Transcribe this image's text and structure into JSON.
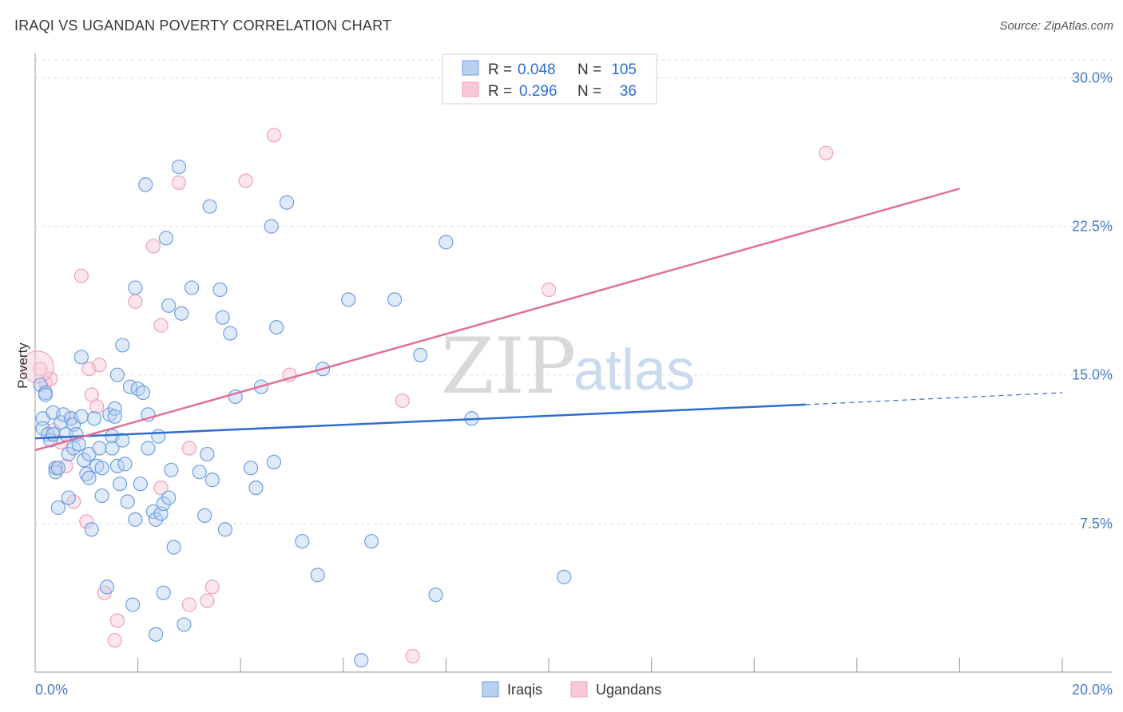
{
  "header": {
    "title": "IRAQI VS UGANDAN POVERTY CORRELATION CHART",
    "source": "Source: ZipAtlas.com"
  },
  "legend": {
    "rows": [
      {
        "r_label": "R =",
        "r_value": "0.048",
        "n_label": "N =",
        "n_value": "105"
      },
      {
        "r_label": "R =",
        "r_value": "0.296",
        "n_label": "N =",
        "n_value": "36"
      }
    ]
  },
  "watermark": {
    "zip": "ZIP",
    "atlas": "atlas"
  },
  "chart_data": {
    "type": "scatter",
    "title": "IRAQI VS UGANDAN POVERTY CORRELATION CHART",
    "xlabel": "",
    "ylabel": "Poverty",
    "xlim": [
      0,
      20
    ],
    "ylim": [
      0,
      30.9
    ],
    "x_tick_labels": [
      "0.0%",
      "20.0%"
    ],
    "y_ticks": [
      7.5,
      15.0,
      22.5,
      30.0
    ],
    "y_tick_labels": [
      "7.5%",
      "15.0%",
      "22.5%",
      "30.0%"
    ],
    "colors": {
      "iraqis": "#6f9fe0",
      "ugandans": "#f0a0ba",
      "iraqis_line": "#2d6ed0",
      "ugandans_line": "#e0709a"
    },
    "series": [
      {
        "name": "Iraqis",
        "trend": {
          "x0": 0,
          "y0": 11.8,
          "x1": 15.0,
          "y1": 13.5,
          "dash_to_x": 20,
          "dash_to_y": 14.1
        },
        "points": [
          [
            0.1,
            14.5
          ],
          [
            0.15,
            12.8
          ],
          [
            0.15,
            12.3
          ],
          [
            0.2,
            14.1
          ],
          [
            0.2,
            14.0
          ],
          [
            0.25,
            12.0
          ],
          [
            0.3,
            11.7
          ],
          [
            0.35,
            13.1
          ],
          [
            0.35,
            12.0
          ],
          [
            0.4,
            10.3
          ],
          [
            0.4,
            10.1
          ],
          [
            0.45,
            10.3
          ],
          [
            0.45,
            8.3
          ],
          [
            0.5,
            12.6
          ],
          [
            0.55,
            13.0
          ],
          [
            0.6,
            12.0
          ],
          [
            0.65,
            11.0
          ],
          [
            0.65,
            8.8
          ],
          [
            0.7,
            12.8
          ],
          [
            0.75,
            12.5
          ],
          [
            0.75,
            11.3
          ],
          [
            0.8,
            12.0
          ],
          [
            0.85,
            11.5
          ],
          [
            0.9,
            15.9
          ],
          [
            0.9,
            12.9
          ],
          [
            0.95,
            10.7
          ],
          [
            1.0,
            10.0
          ],
          [
            1.05,
            9.8
          ],
          [
            1.05,
            11.0
          ],
          [
            1.1,
            7.2
          ],
          [
            1.15,
            12.8
          ],
          [
            1.2,
            10.4
          ],
          [
            1.25,
            11.3
          ],
          [
            1.3,
            10.3
          ],
          [
            1.3,
            8.9
          ],
          [
            1.4,
            4.3
          ],
          [
            1.45,
            13.0
          ],
          [
            1.5,
            11.9
          ],
          [
            1.5,
            11.3
          ],
          [
            1.55,
            13.3
          ],
          [
            1.55,
            12.9
          ],
          [
            1.6,
            15.0
          ],
          [
            1.6,
            10.4
          ],
          [
            1.65,
            9.5
          ],
          [
            1.7,
            16.5
          ],
          [
            1.7,
            11.7
          ],
          [
            1.75,
            10.5
          ],
          [
            1.8,
            8.6
          ],
          [
            1.85,
            14.4
          ],
          [
            1.9,
            3.4
          ],
          [
            1.95,
            19.4
          ],
          [
            1.95,
            7.7
          ],
          [
            2.0,
            14.3
          ],
          [
            2.05,
            9.5
          ],
          [
            2.1,
            14.1
          ],
          [
            2.15,
            24.6
          ],
          [
            2.2,
            13.0
          ],
          [
            2.2,
            11.3
          ],
          [
            2.3,
            8.1
          ],
          [
            2.35,
            7.7
          ],
          [
            2.35,
            1.9
          ],
          [
            2.4,
            11.9
          ],
          [
            2.45,
            8.0
          ],
          [
            2.5,
            8.5
          ],
          [
            2.5,
            4.0
          ],
          [
            2.55,
            21.9
          ],
          [
            2.6,
            8.8
          ],
          [
            2.6,
            18.5
          ],
          [
            2.65,
            10.2
          ],
          [
            2.7,
            6.3
          ],
          [
            2.8,
            25.5
          ],
          [
            2.85,
            18.1
          ],
          [
            2.9,
            2.4
          ],
          [
            3.05,
            19.4
          ],
          [
            3.2,
            10.1
          ],
          [
            3.3,
            7.9
          ],
          [
            3.35,
            11.0
          ],
          [
            3.4,
            23.5
          ],
          [
            3.45,
            9.7
          ],
          [
            3.6,
            19.3
          ],
          [
            3.65,
            17.9
          ],
          [
            3.7,
            7.2
          ],
          [
            3.8,
            17.1
          ],
          [
            3.9,
            13.9
          ],
          [
            4.2,
            10.3
          ],
          [
            4.3,
            9.3
          ],
          [
            4.4,
            14.4
          ],
          [
            4.6,
            22.5
          ],
          [
            4.65,
            10.6
          ],
          [
            4.7,
            17.4
          ],
          [
            4.9,
            23.7
          ],
          [
            5.2,
            6.6
          ],
          [
            5.5,
            4.9
          ],
          [
            5.6,
            15.3
          ],
          [
            6.1,
            18.8
          ],
          [
            6.35,
            0.6
          ],
          [
            6.55,
            6.6
          ],
          [
            7.0,
            18.8
          ],
          [
            7.5,
            16.0
          ],
          [
            7.8,
            3.9
          ],
          [
            8.0,
            21.7
          ],
          [
            8.5,
            12.8
          ],
          [
            10.3,
            4.8
          ]
        ]
      },
      {
        "name": "Ugandans",
        "trend": {
          "x0": 0,
          "y0": 11.2,
          "x1": 18.0,
          "y1": 24.4
        },
        "points": [
          [
            0.1,
            15.3
          ],
          [
            0.2,
            14.6
          ],
          [
            0.3,
            14.8
          ],
          [
            0.35,
            12.2
          ],
          [
            0.4,
            10.3
          ],
          [
            0.5,
            11.6
          ],
          [
            0.6,
            10.4
          ],
          [
            0.7,
            12.8
          ],
          [
            0.75,
            8.6
          ],
          [
            0.9,
            20.0
          ],
          [
            1.0,
            7.6
          ],
          [
            1.05,
            15.3
          ],
          [
            1.1,
            14.0
          ],
          [
            1.2,
            13.4
          ],
          [
            1.25,
            15.5
          ],
          [
            1.35,
            4.0
          ],
          [
            1.55,
            1.6
          ],
          [
            1.6,
            2.6
          ],
          [
            1.95,
            18.7
          ],
          [
            2.3,
            21.5
          ],
          [
            2.45,
            9.3
          ],
          [
            2.45,
            17.5
          ],
          [
            2.8,
            24.7
          ],
          [
            3.0,
            11.3
          ],
          [
            3.0,
            3.4
          ],
          [
            3.35,
            3.6
          ],
          [
            3.45,
            4.3
          ],
          [
            4.1,
            24.8
          ],
          [
            4.65,
            27.1
          ],
          [
            4.95,
            15.0
          ],
          [
            7.15,
            13.7
          ],
          [
            7.35,
            0.8
          ],
          [
            10.0,
            19.3
          ],
          [
            15.4,
            26.2
          ]
        ]
      }
    ]
  },
  "bottom_legend": {
    "items": [
      "Iraqis",
      "Ugandans"
    ]
  }
}
